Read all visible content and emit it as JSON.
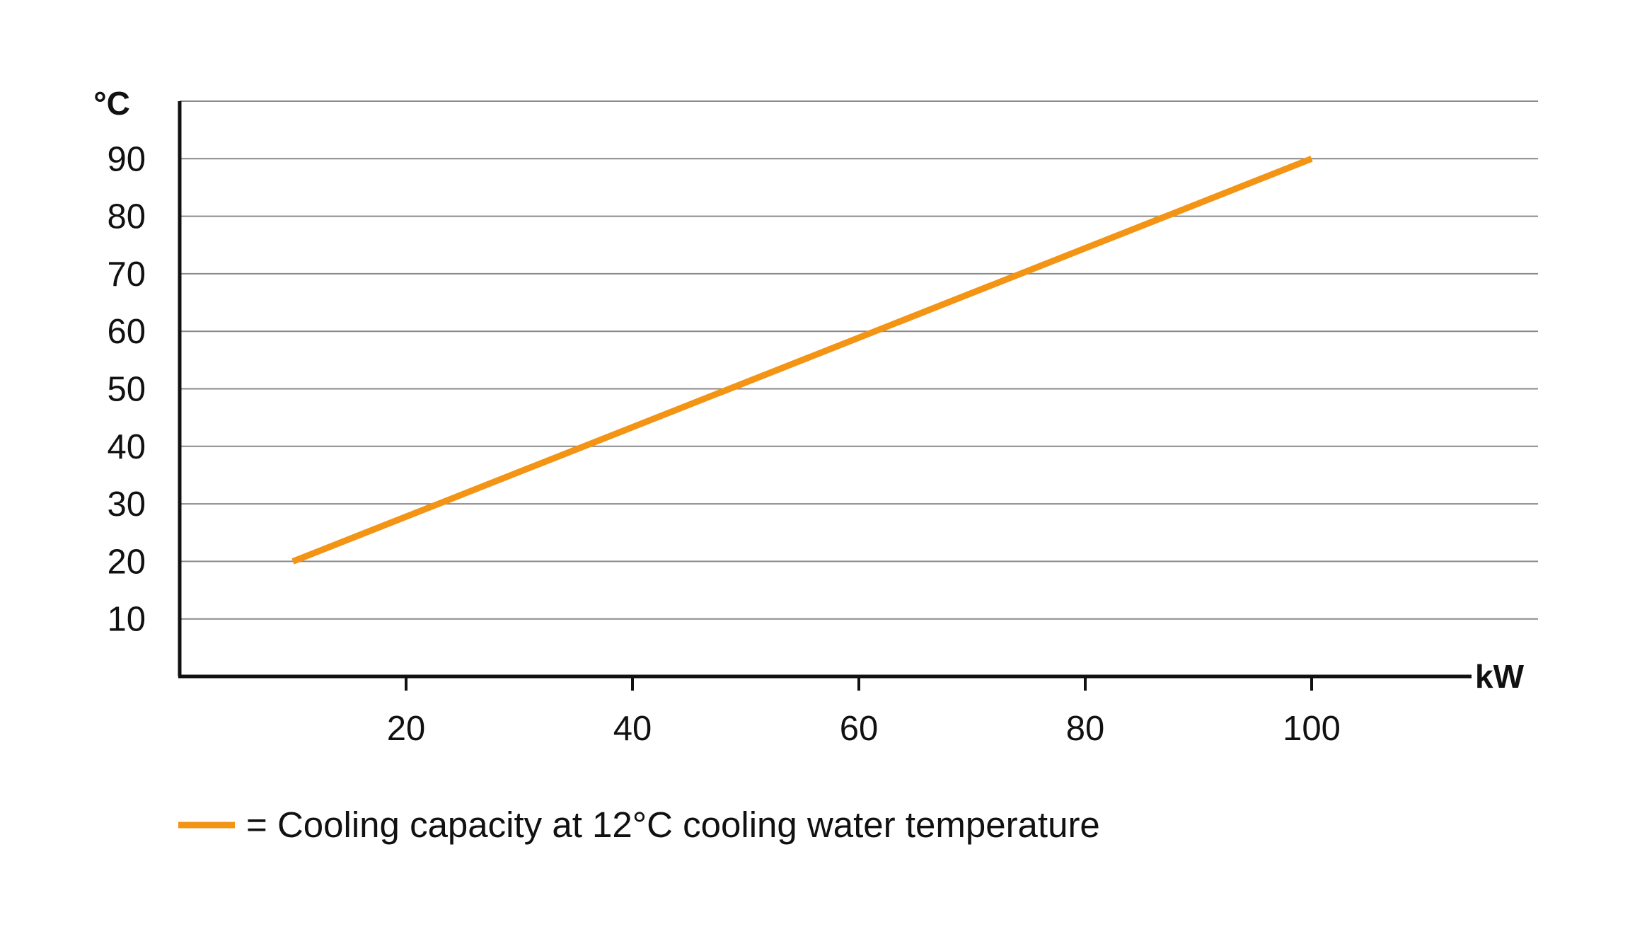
{
  "chart_data": {
    "type": "line",
    "ylabel": "°C",
    "xlabel": "kW",
    "xlim": [
      0,
      120
    ],
    "ylim": [
      0,
      100
    ],
    "x_ticks": [
      20,
      40,
      60,
      80,
      100
    ],
    "y_ticks": [
      10,
      20,
      30,
      40,
      50,
      60,
      70,
      80,
      90
    ],
    "grid": true,
    "legend_position": "bottom-left",
    "series": [
      {
        "name": "= Cooling capacity at 12°C cooling water temperature",
        "color": "#f39415",
        "points": [
          {
            "x": 10,
            "y": 20
          },
          {
            "x": 100,
            "y": 90
          }
        ]
      }
    ]
  }
}
